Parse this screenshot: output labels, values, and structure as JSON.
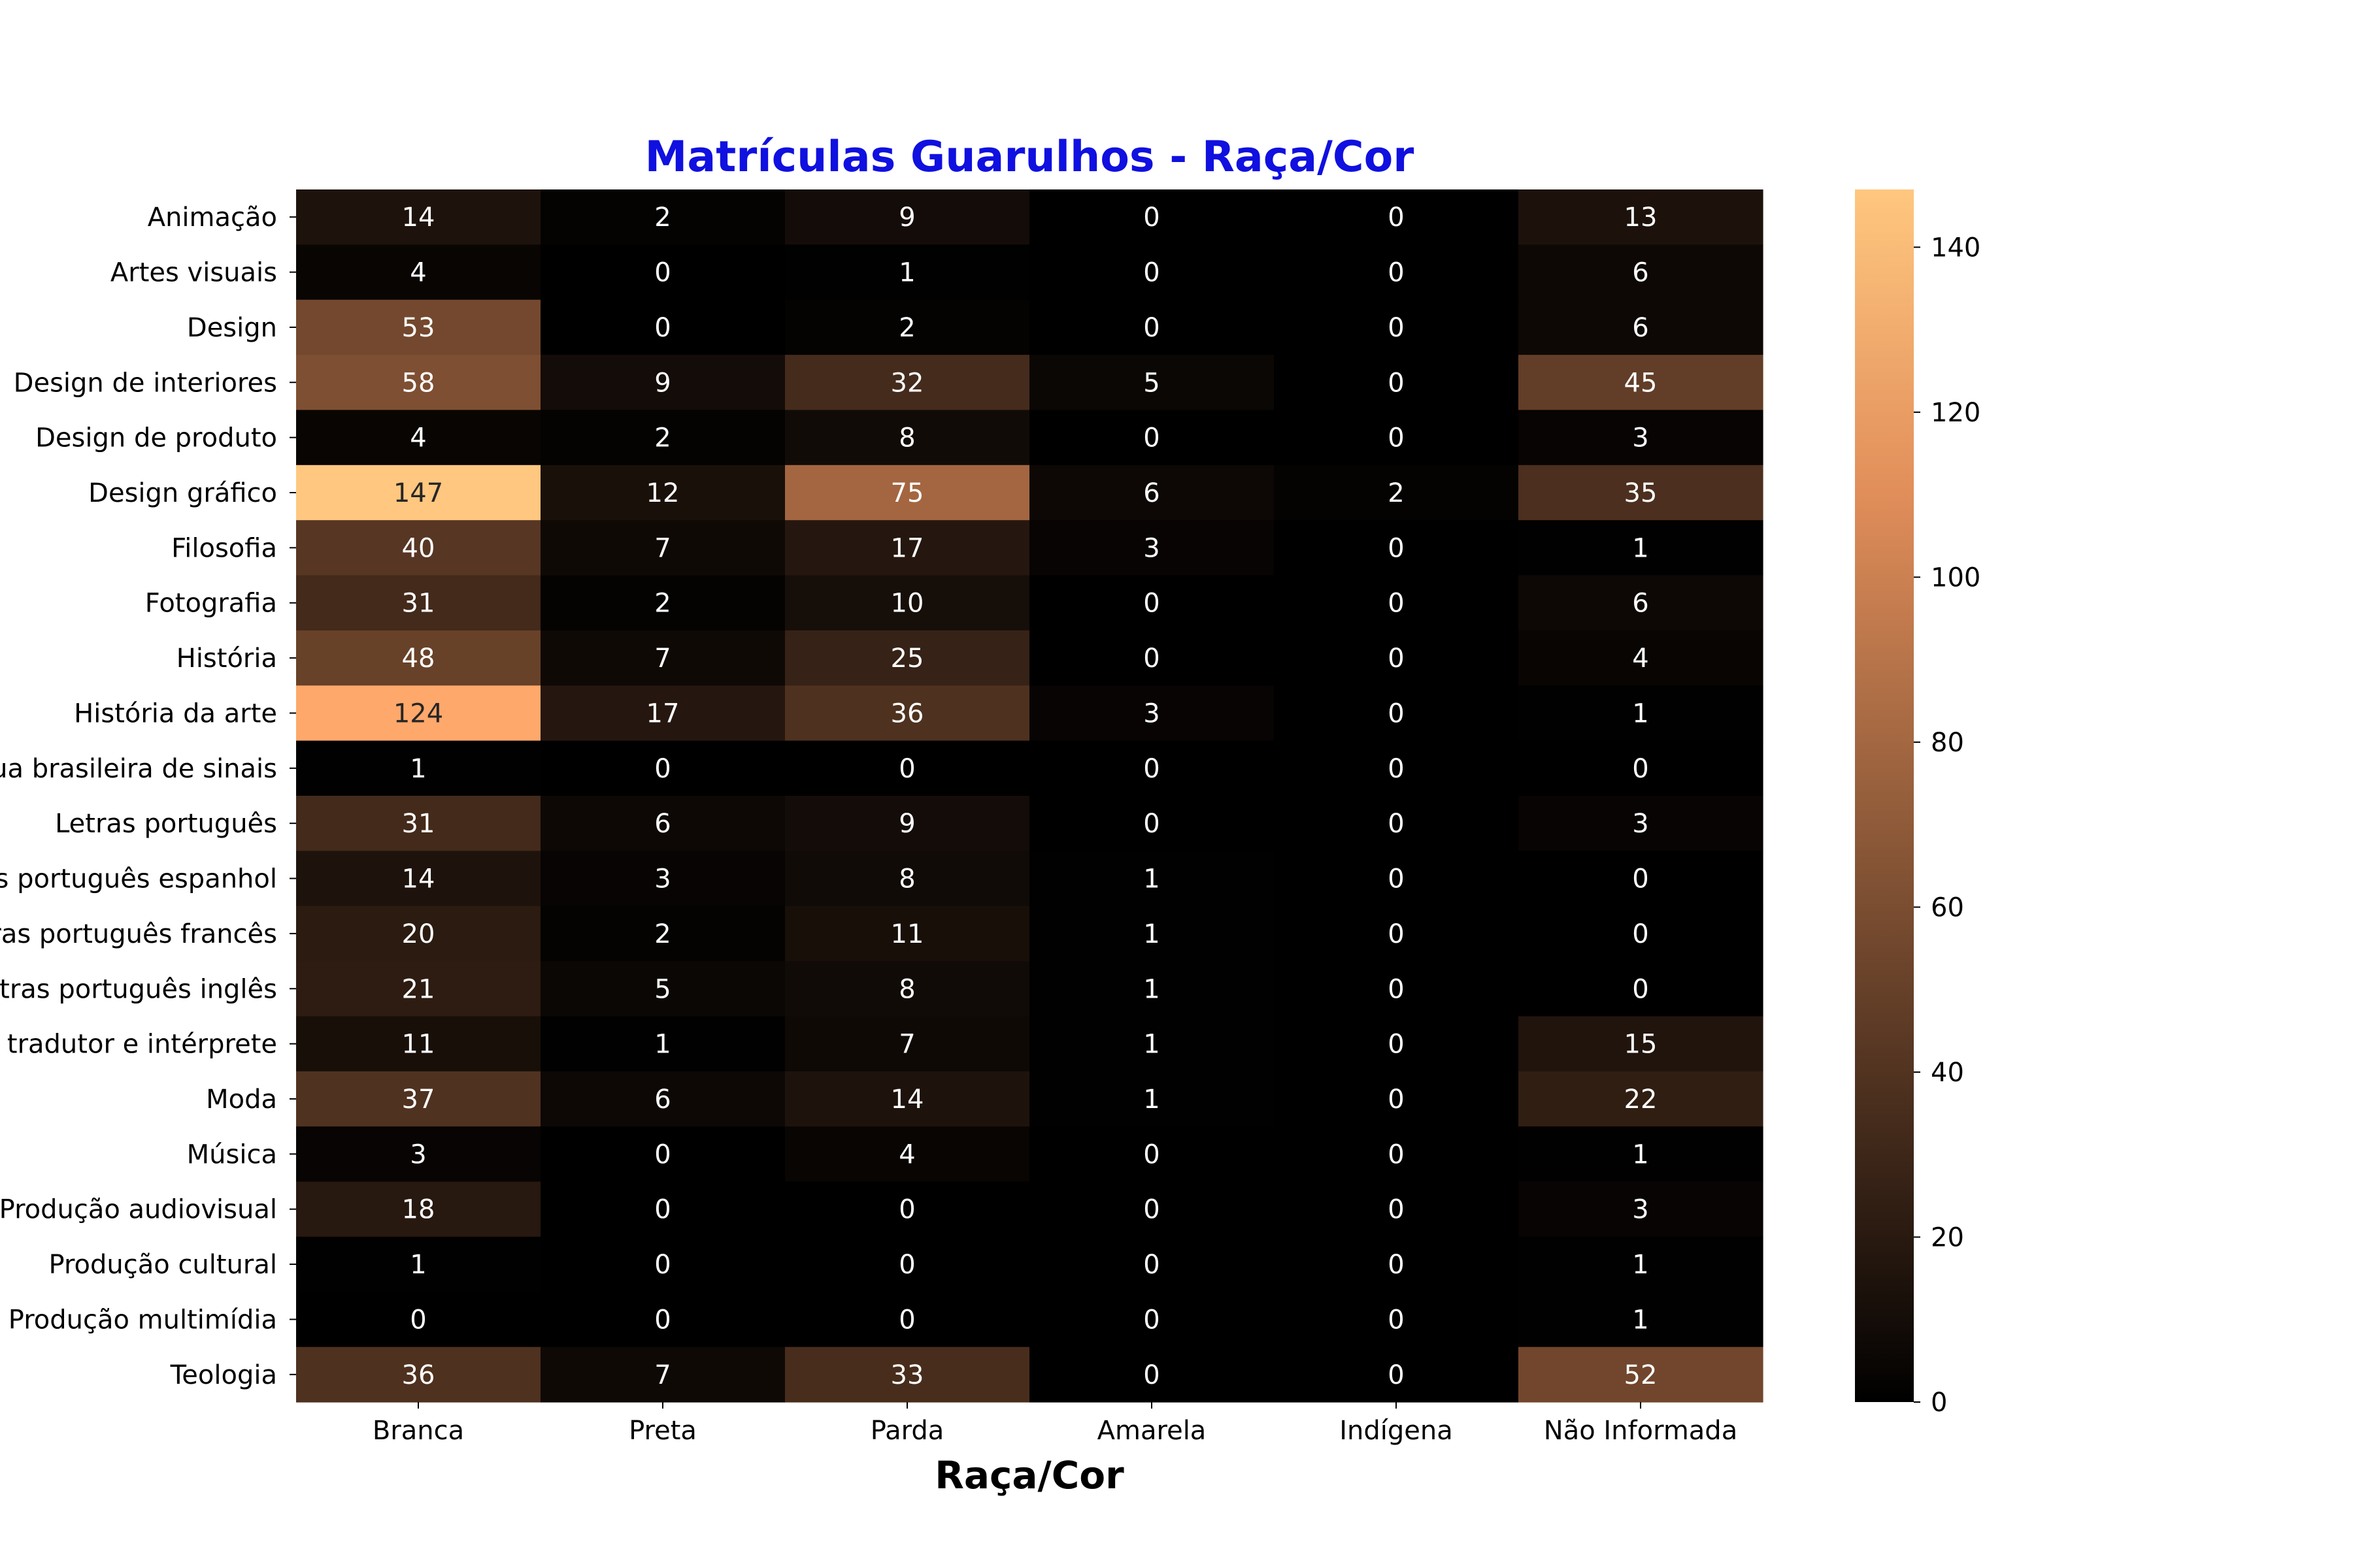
{
  "colors": {
    "title": "#1010e0",
    "colormap": "copper",
    "text_on_dark": "#ffffff",
    "text_on_light": "#262626"
  },
  "chart_data": {
    "type": "heatmap",
    "title": "Matrículas Guarulhos - Raça/Cor",
    "xlabel": "Raça/Cor",
    "ylabel": "",
    "columns": [
      "Branca",
      "Preta",
      "Parda",
      "Amarela",
      "Indígena",
      "Não Informada"
    ],
    "rows": [
      "Animação",
      "Artes visuais",
      "Design",
      "Design de interiores",
      "Design de produto",
      "Design gráfico",
      "Filosofia",
      "Fotografia",
      "História",
      "História da arte",
      "Letras língua brasileira de sinais",
      "Letras português",
      "Letras português espanhol",
      "Letras português francês",
      "Letras português inglês",
      "Letras tradutor e intérprete",
      "Moda",
      "Música",
      "Produção audiovisual",
      "Produção cultural",
      "Produção multimídia",
      "Teologia"
    ],
    "values": [
      [
        14,
        2,
        9,
        0,
        0,
        13
      ],
      [
        4,
        0,
        1,
        0,
        0,
        6
      ],
      [
        53,
        0,
        2,
        0,
        0,
        6
      ],
      [
        58,
        9,
        32,
        5,
        0,
        45
      ],
      [
        4,
        2,
        8,
        0,
        0,
        3
      ],
      [
        147,
        12,
        75,
        6,
        2,
        35
      ],
      [
        40,
        7,
        17,
        3,
        0,
        1
      ],
      [
        31,
        2,
        10,
        0,
        0,
        6
      ],
      [
        48,
        7,
        25,
        0,
        0,
        4
      ],
      [
        124,
        17,
        36,
        3,
        0,
        1
      ],
      [
        1,
        0,
        0,
        0,
        0,
        0
      ],
      [
        31,
        6,
        9,
        0,
        0,
        3
      ],
      [
        14,
        3,
        8,
        1,
        0,
        0
      ],
      [
        20,
        2,
        11,
        1,
        0,
        0
      ],
      [
        21,
        5,
        8,
        1,
        0,
        0
      ],
      [
        11,
        1,
        7,
        1,
        0,
        15
      ],
      [
        37,
        6,
        14,
        1,
        0,
        22
      ],
      [
        3,
        0,
        4,
        0,
        0,
        1
      ],
      [
        18,
        0,
        0,
        0,
        0,
        3
      ],
      [
        1,
        0,
        0,
        0,
        0,
        1
      ],
      [
        0,
        0,
        0,
        0,
        0,
        1
      ],
      [
        36,
        7,
        33,
        0,
        0,
        52
      ]
    ],
    "colorbar": {
      "min": 0,
      "max": 147,
      "ticks": [
        0,
        20,
        40,
        60,
        80,
        100,
        120,
        140
      ]
    }
  }
}
